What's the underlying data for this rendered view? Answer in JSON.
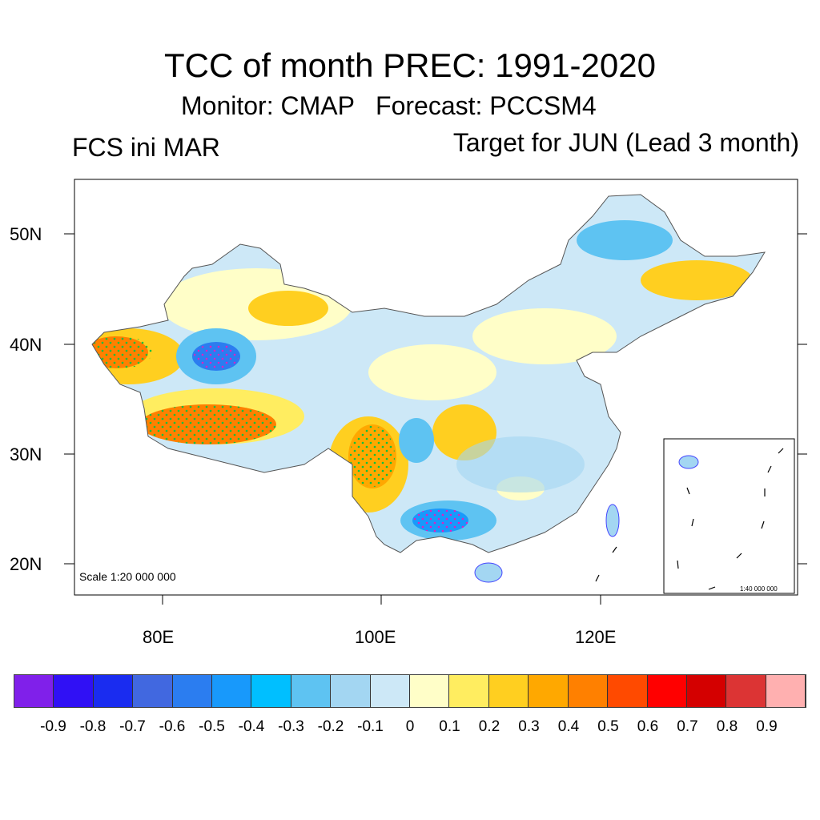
{
  "title": "TCC of month PREC: 1991-2020",
  "subtitle": "Monitor: CMAP   Forecast: PCCSM4",
  "left_label": "FCS ini MAR",
  "right_label": "Target for JUN (Lead 3 month)",
  "lat_labels": [
    "50N",
    "40N",
    "30N",
    "20N"
  ],
  "lon_labels": [
    "80E",
    "100E",
    "120E"
  ],
  "scale_main": "Scale 1:20 000 000",
  "scale_inset": "1:40 000 000",
  "colorbar": {
    "labels": [
      "-0.9",
      "-0.8",
      "-0.7",
      "-0.6",
      "-0.5",
      "-0.4",
      "-0.3",
      "-0.2",
      "-0.1",
      "0",
      "0.1",
      "0.2",
      "0.3",
      "0.4",
      "0.5",
      "0.6",
      "0.7",
      "0.8",
      "0.9"
    ],
    "colors": [
      "#8020ea",
      "#3010f5",
      "#1a2cf0",
      "#4168e0",
      "#2b7df0",
      "#1899fb",
      "#00bfff",
      "#5ec3f2",
      "#a3d6f2",
      "#cde8f7",
      "#fffec8",
      "#ffed60",
      "#ffcf20",
      "#ffa800",
      "#ff8000",
      "#ff4a00",
      "#ff0000",
      "#d40000",
      "#dc3434",
      "#ffb0b0"
    ]
  }
}
